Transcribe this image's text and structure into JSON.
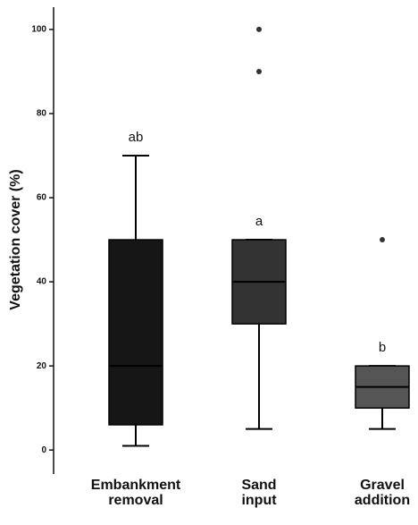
{
  "chart_data": {
    "type": "box",
    "y_label": "Vegetation cover (%)",
    "categories": [
      [
        "Embankment",
        "removal"
      ],
      [
        "Sand",
        "input"
      ],
      [
        "Gravel",
        "addition"
      ]
    ],
    "boxes": [
      {
        "whisker_low": 1,
        "q1": 6,
        "median": 20,
        "q3": 50,
        "whisker_high": 70,
        "outliers": [],
        "label": "ab",
        "color": "#161616"
      },
      {
        "whisker_low": 5,
        "q1": 30,
        "median": 40,
        "q3": 50,
        "whisker_high": 50,
        "outliers": [
          90,
          100
        ],
        "label": "a",
        "color": "#333333"
      },
      {
        "whisker_low": 5,
        "q1": 10,
        "median": 15,
        "q3": 20,
        "whisker_high": 20,
        "outliers": [
          50
        ],
        "label": "b",
        "color": "#555555"
      }
    ],
    "ylim": [
      -5.7,
      105.3
    ],
    "yticks": [
      0,
      20,
      40,
      60,
      80,
      100
    ]
  }
}
